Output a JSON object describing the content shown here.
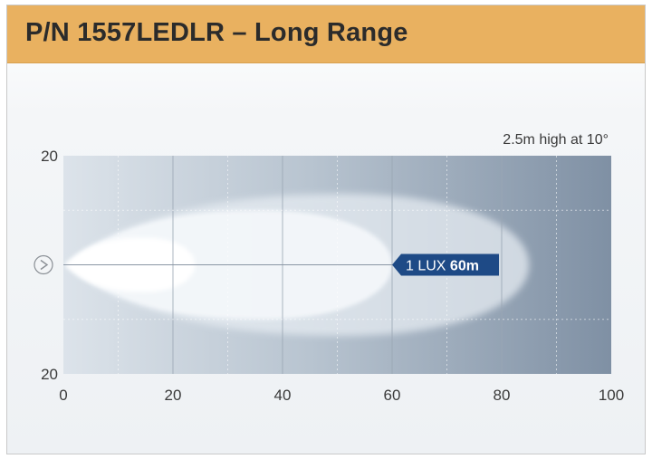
{
  "header": {
    "title": "P/N 1557LEDLR – Long Range",
    "background_color": "#e9b160"
  },
  "chart_data": {
    "type": "area",
    "title": "P/N 1557LEDLR – Long Range",
    "note": "2.5m high at 10°",
    "xlim": [
      0,
      100
    ],
    "ylim": [
      -20,
      20
    ],
    "x_ticks": [
      "0",
      "20",
      "40",
      "60",
      "80",
      "100"
    ],
    "y_ticks": [
      "20",
      "20"
    ],
    "grid": true,
    "light_source_icon": "headlamp-icon",
    "beam_zones": [
      {
        "name": "outer",
        "reach": 85,
        "half_width": 13
      },
      {
        "name": "middle",
        "reach": 60,
        "half_width": 10
      },
      {
        "name": "inner",
        "reach": 24,
        "half_width": 5
      }
    ],
    "lux_label": {
      "text": "1 LUX",
      "distance_text": "60m",
      "distance": 60,
      "color": "#1e4a86"
    }
  }
}
